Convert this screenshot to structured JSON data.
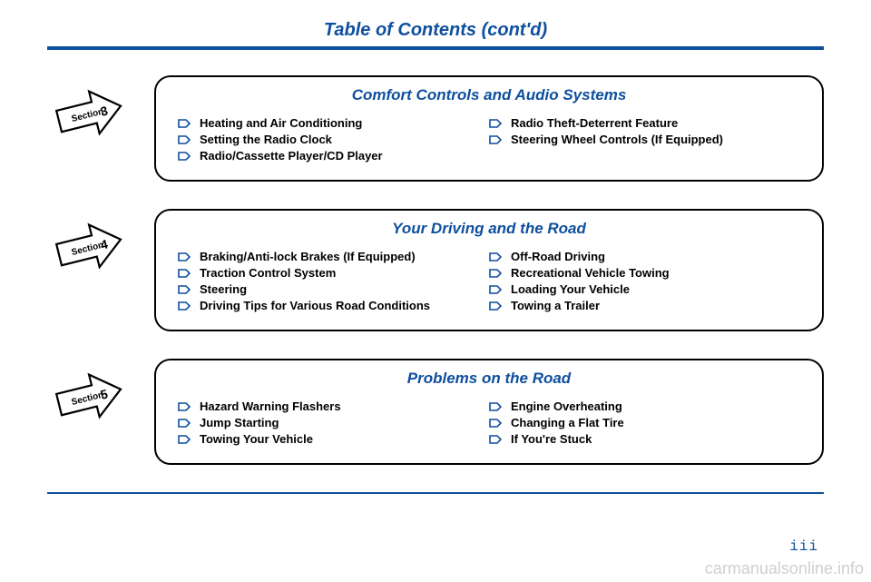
{
  "colors": {
    "blue": "#0e4f9e",
    "black": "#000000",
    "watermark": "#cfcfcf"
  },
  "page_title": "Table of Contents (cont'd)",
  "page_number": "iii",
  "watermark": "carmanualsonline.info",
  "section_label": "Section",
  "sections": [
    {
      "num": "3",
      "title": "Comfort Controls and Audio Systems",
      "left": [
        "Heating and Air Conditioning",
        "Setting the Radio Clock",
        "Radio/Cassette Player/CD Player"
      ],
      "right": [
        "Radio Theft-Deterrent Feature",
        "Steering Wheel Controls (If Equipped)"
      ]
    },
    {
      "num": "4",
      "title": "Your Driving and the Road",
      "left": [
        "Braking/Anti-lock Brakes (If Equipped)",
        "Traction Control System",
        "Steering",
        "Driving Tips for Various Road Conditions"
      ],
      "right": [
        "Off-Road Driving",
        "Recreational Vehicle Towing",
        "Loading Your Vehicle",
        "Towing a Trailer"
      ]
    },
    {
      "num": "5",
      "title": "Problems on the Road",
      "left": [
        "Hazard Warning Flashers",
        "Jump Starting",
        "Towing Your Vehicle"
      ],
      "right": [
        "Engine Overheating",
        "Changing a Flat Tire",
        "If You're Stuck"
      ]
    }
  ]
}
